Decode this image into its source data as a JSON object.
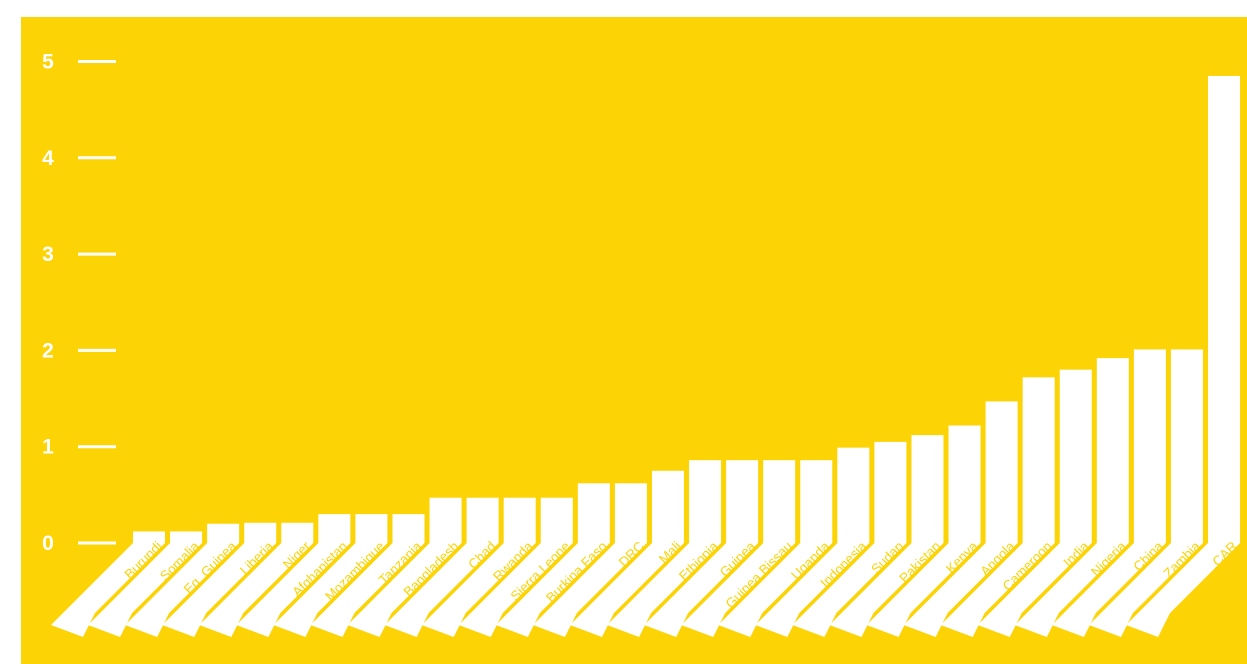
{
  "chart_data": {
    "type": "bar",
    "title": "",
    "xlabel": "",
    "ylabel": "",
    "ylim": [
      0,
      5
    ],
    "yticks": [
      "0",
      "1",
      "2",
      "3",
      "4",
      "5"
    ],
    "grid": false,
    "legend": "none",
    "categories": [
      "Burundi",
      "Somalia",
      "Eq. Guinea",
      "Liberia",
      "Niger",
      "Afghanistan",
      "Mozambique",
      "Tanzania",
      "Bangladesh",
      "Chad",
      "Rwanda",
      "Sierra Leone",
      "Burkina Faso",
      "DRC",
      "Mali",
      "Ethiopia",
      "Guinea",
      "Guinea Bissau",
      "Uganda",
      "Indonesia",
      "Sudan",
      "Pakistan",
      "Kenya",
      "Angola",
      "Cameroon",
      "India",
      "Nigeria",
      "China",
      "Zambia",
      "CAR"
    ],
    "values": [
      0.12,
      0.12,
      0.2,
      0.21,
      0.21,
      0.3,
      0.3,
      0.3,
      0.47,
      0.47,
      0.47,
      0.47,
      0.62,
      0.62,
      0.75,
      0.86,
      0.86,
      0.86,
      0.86,
      0.99,
      1.05,
      1.12,
      1.22,
      1.47,
      1.72,
      1.8,
      1.92,
      2.01,
      2.01,
      4.85
    ]
  },
  "colors": {
    "background": "#FCD406",
    "bars": "#FFFFFF",
    "text": "#FFFFFF"
  }
}
